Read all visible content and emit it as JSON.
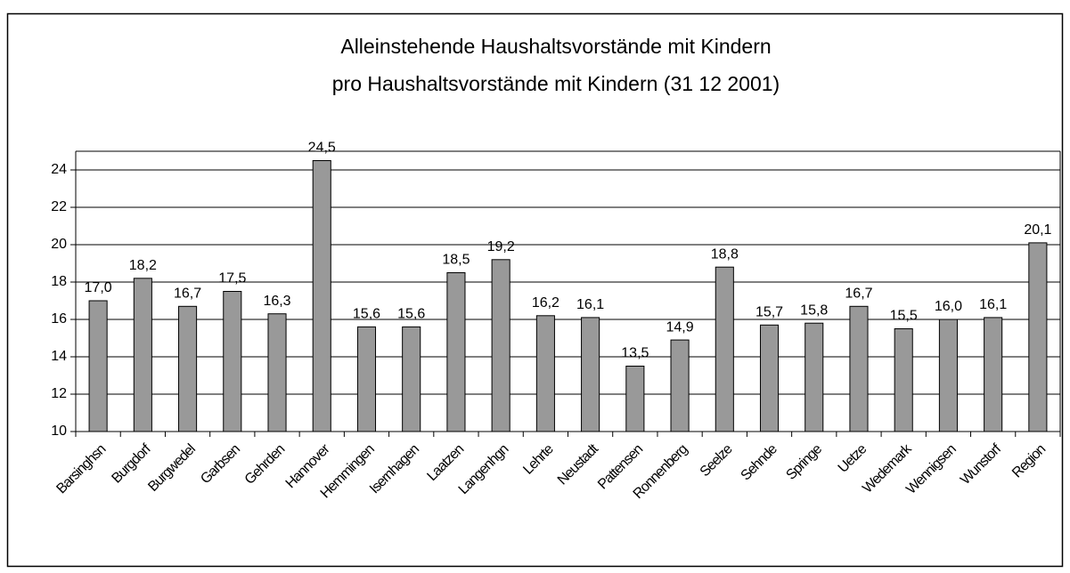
{
  "chart_data": {
    "type": "bar",
    "title": "Alleinstehende Haushaltsvorstände mit Kindern",
    "subtitle": "pro Haushaltsvorstände mit Kindern (31 12 2001)",
    "categories": [
      "Barsinghsn",
      "Burgdorf",
      "Burgwedel",
      "Garbsen",
      "Gehrden",
      "Hannover",
      "Hemmingen",
      "Isernhagen",
      "Laatzen",
      "Langenhgn",
      "Lehrte",
      "Neustadt",
      "Pattensen",
      "Ronnenberg",
      "Seelze",
      "Sehnde",
      "Springe",
      "Uetze",
      "Wedemark",
      "Wennigsen",
      "Wunstorf",
      "Region"
    ],
    "values": [
      17.0,
      18.2,
      16.7,
      17.5,
      16.3,
      24.5,
      15.6,
      15.6,
      18.5,
      19.2,
      16.2,
      16.1,
      13.5,
      14.9,
      18.8,
      15.7,
      15.8,
      16.7,
      15.5,
      16.0,
      16.1,
      20.1
    ],
    "value_labels": [
      "17,0",
      "18,2",
      "16,7",
      "17,5",
      "16,3",
      "24,5",
      "15,6",
      "15,6",
      "18,5",
      "19,2",
      "16,2",
      "16,1",
      "13,5",
      "14,9",
      "18,8",
      "15,7",
      "15,8",
      "16,7",
      "15,5",
      "16,0",
      "16,1",
      "20,1"
    ],
    "color": "#999999",
    "ylim": [
      10,
      25
    ],
    "yticks": [
      10,
      12,
      14,
      16,
      18,
      20,
      22,
      24
    ],
    "grid": true
  }
}
